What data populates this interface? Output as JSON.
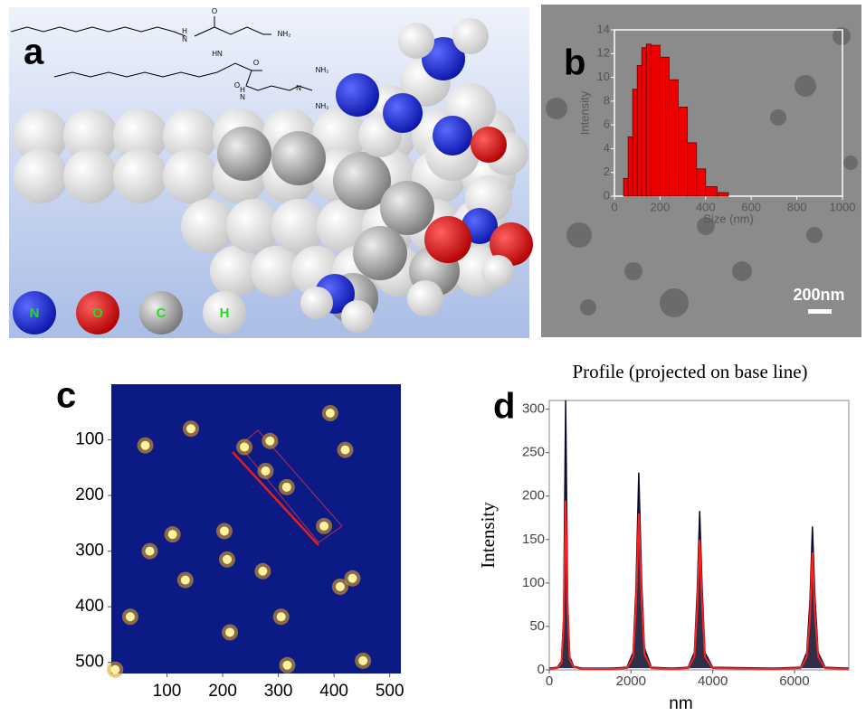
{
  "panel_labels": [
    "a",
    "b",
    "c",
    "d"
  ],
  "structure_labels": [
    "O",
    "H",
    "N",
    "NH₂",
    "HN",
    "O",
    "O",
    "H",
    "N",
    "N",
    "NH₂",
    "NH₂"
  ],
  "atom_legend": [
    "N",
    "O",
    "C",
    "H"
  ],
  "scale_bar": "200nm",
  "chart_data": [
    {
      "type": "histogram",
      "xlabel": "Size (nm)",
      "ylabel": "Intensity",
      "color": "#ee0000",
      "bins": [
        40,
        60,
        80,
        100,
        120,
        140,
        160,
        200,
        240,
        280,
        320,
        360,
        400,
        450,
        500
      ],
      "values": [
        1.5,
        5,
        9,
        11,
        12.5,
        12.8,
        12.7,
        11.7,
        9.8,
        7.5,
        4.5,
        2.3,
        0.8,
        0.3
      ],
      "xlim": [
        0,
        1000
      ],
      "xticks": [
        0,
        200,
        400,
        600,
        800,
        1000
      ],
      "ylim": [
        0,
        14
      ],
      "yticks": [
        0,
        2,
        4,
        6,
        8,
        10,
        12,
        14
      ]
    },
    {
      "type": "scatter",
      "color": "#fff3a0",
      "x": [
        61,
        143,
        393,
        420,
        239,
        285,
        277,
        315,
        110,
        203,
        382,
        69,
        208,
        272,
        133,
        411,
        433,
        34,
        305,
        213,
        316,
        452,
        7
      ],
      "values": [
        110,
        80,
        52,
        118,
        113,
        102,
        156,
        185,
        270,
        264,
        255,
        300,
        315,
        336,
        352,
        364,
        349,
        418,
        418,
        446,
        505,
        497,
        513
      ],
      "xlim": [
        0,
        520
      ],
      "xticks": [
        100,
        200,
        300,
        400,
        500
      ],
      "ylim": [
        520,
        0
      ],
      "yticks": [
        100,
        200,
        300,
        400,
        500
      ]
    },
    {
      "type": "line",
      "title": "Profile (projected on base line)",
      "xlabel": "nm",
      "ylabel": "Intensity",
      "x": [
        0,
        200,
        300,
        350,
        400,
        450,
        500,
        600,
        800,
        1500,
        1900,
        2050,
        2120,
        2190,
        2260,
        2330,
        2500,
        3000,
        3400,
        3550,
        3620,
        3680,
        3740,
        3810,
        4000,
        5500,
        6150,
        6300,
        6380,
        6440,
        6500,
        6580,
        6750,
        7330
      ],
      "series": [
        {
          "color": "#0a0a2a",
          "values": [
            2,
            3,
            10,
            60,
            310,
            80,
            15,
            4,
            2,
            2,
            3,
            20,
            90,
            227,
            100,
            25,
            3,
            2,
            3,
            20,
            90,
            183,
            95,
            20,
            3,
            2,
            3,
            20,
            80,
            165,
            85,
            20,
            3,
            2
          ]
        },
        {
          "color": "#ff2020",
          "values": [
            1,
            2,
            8,
            50,
            195,
            70,
            12,
            3,
            1,
            1,
            2,
            15,
            70,
            180,
            80,
            18,
            2,
            1,
            2,
            15,
            70,
            150,
            75,
            15,
            2,
            1,
            2,
            15,
            60,
            135,
            65,
            15,
            2,
            1
          ]
        }
      ],
      "xlim": [
        0,
        7330
      ],
      "xticks": [
        0,
        2000,
        4000,
        6000
      ],
      "ylim": [
        0,
        310
      ],
      "yticks": [
        0,
        50,
        100,
        150,
        200,
        250,
        300
      ]
    }
  ]
}
